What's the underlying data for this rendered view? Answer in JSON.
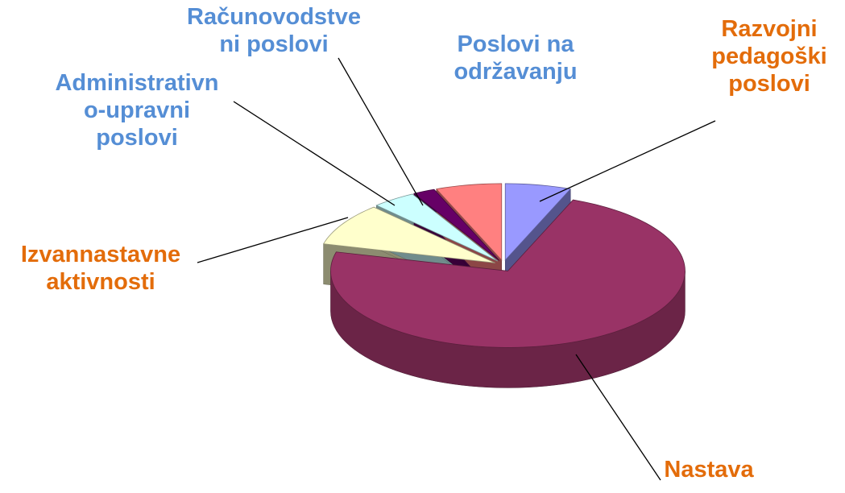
{
  "chart_data": {
    "type": "pie3d",
    "categories": [
      "Razvojni\npedagoški\nposlovi",
      "Nastava",
      "Izvannastavne\naktivnosti",
      "Administrativn\no-upravni\nposlovi",
      "Računovodstve\nni poslovi",
      "Poslovi na\nodržavanju"
    ],
    "values": [
      6,
      73,
      9,
      4,
      2,
      6
    ],
    "colors": [
      "#9999ff",
      "#993366",
      "#ffffcc",
      "#ccffff",
      "#660066",
      "#ff8080"
    ],
    "label_colors": [
      "#e36c0a",
      "#e36c0a",
      "#e36c0a",
      "#558ed5",
      "#558ed5",
      "#558ed5"
    ]
  }
}
